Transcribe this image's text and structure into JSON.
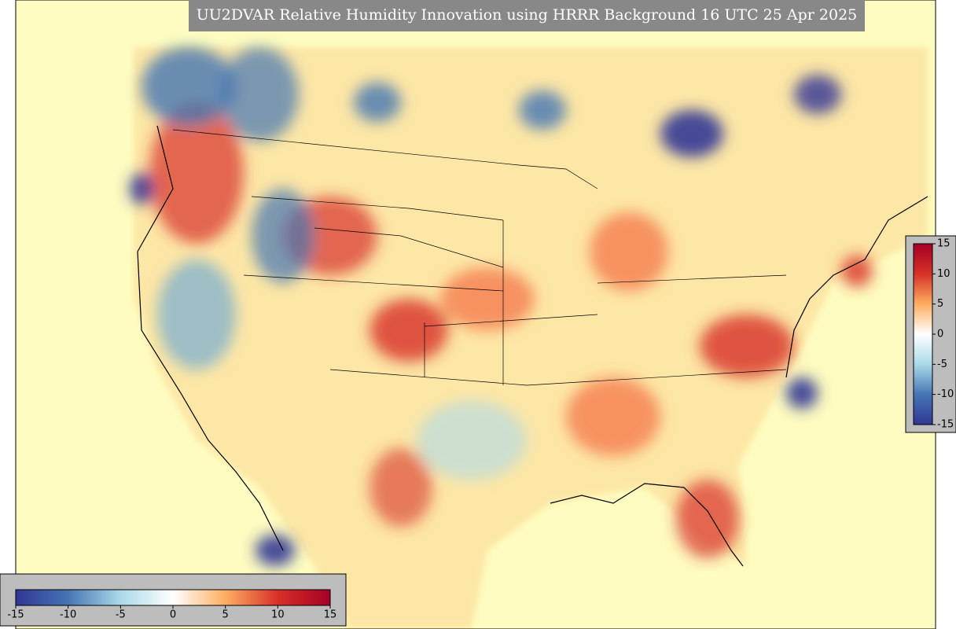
{
  "title": "UU2DVAR Relative Humidity Innovation using HRRR Background 16 UTC 25 Apr 2025",
  "colormap": [
    "#313695",
    "#4575b4",
    "#abd9e9",
    "#ffffff",
    "#fdae61",
    "#d73027",
    "#a50026"
  ],
  "colorbar_right": {
    "lim": [
      -15,
      15
    ],
    "ticks": [
      15,
      10,
      5,
      0,
      -5,
      -10,
      -15
    ]
  },
  "colorbar_bottom": {
    "lim": [
      -15,
      15
    ],
    "ticks": [
      -15,
      -10,
      -5,
      0,
      5,
      10,
      15
    ]
  }
}
